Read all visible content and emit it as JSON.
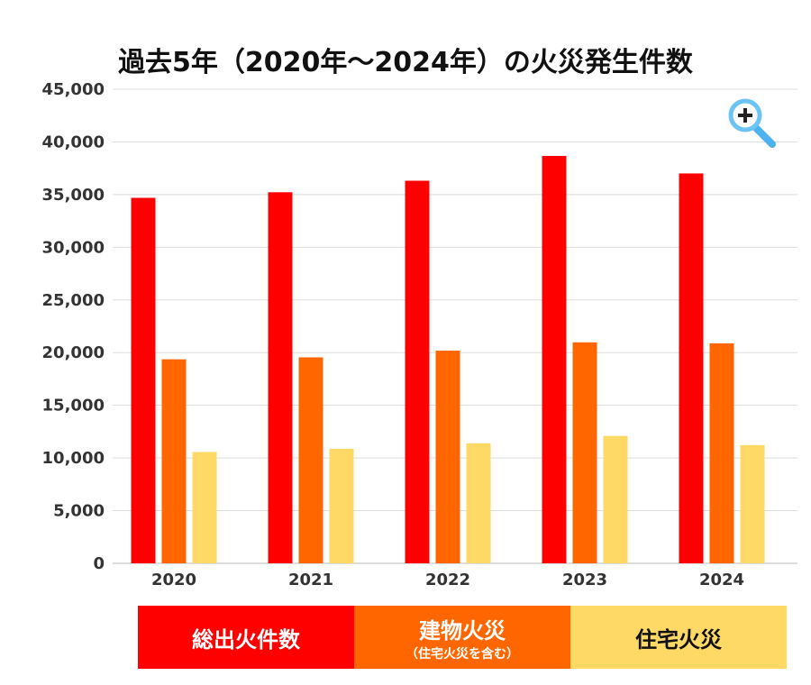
{
  "chart_data": {
    "type": "bar",
    "title": "過去5年（2020年～2024年）の火災発生件数",
    "categories": [
      "2020",
      "2021",
      "2022",
      "2023",
      "2024"
    ],
    "series": [
      {
        "name": "総出火件数",
        "color": "#ff0000",
        "values": [
          34691,
          35222,
          36314,
          38672,
          37007
        ]
      },
      {
        "name": "建物火災",
        "note": "（住宅火災を含む）",
        "color": "#ff6600",
        "values": [
          19365,
          19549,
          20185,
          20974,
          20880
        ]
      },
      {
        "name": "住宅火災",
        "color": "#ffd966",
        "values": [
          10564,
          10873,
          11397,
          12090,
          11220
        ]
      }
    ],
    "ylim": [
      0,
      45000
    ],
    "yticks": [
      "0",
      "5,000",
      "10,000",
      "15,000",
      "20,000",
      "25,000",
      "30,000",
      "35,000",
      "40,000",
      "45,000"
    ],
    "grid": true,
    "legend": "bottom"
  },
  "icons": {
    "zoom": "magnifier-plus-icon"
  }
}
